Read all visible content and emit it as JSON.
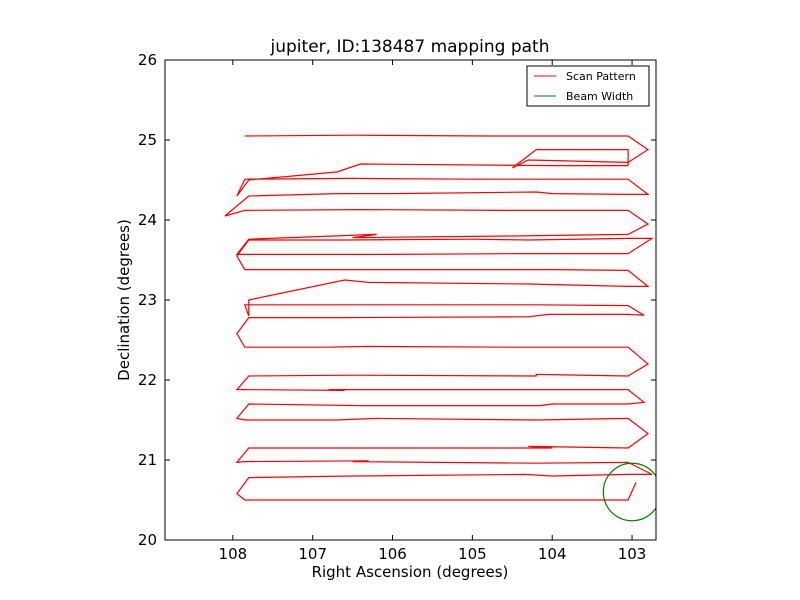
{
  "chart_data": {
    "type": "line",
    "title": "jupiter, ID:138487 mapping path",
    "xlabel": "Right Ascension (degrees)",
    "ylabel": "Declination (degrees)",
    "xlim": [
      108.85,
      102.7
    ],
    "ylim": [
      20,
      26
    ],
    "x_ticks": [
      108,
      107,
      106,
      105,
      104,
      103
    ],
    "y_ticks": [
      20,
      21,
      22,
      23,
      24,
      25,
      26
    ],
    "grid": false,
    "legend_position": "top-right",
    "colors": {
      "scan": "#ff0000",
      "beam": "#008000"
    },
    "series": [
      {
        "name": "Scan Pattern",
        "kind": "line",
        "color": "#ff0000",
        "x": [
          107.85,
          106.5,
          104.8,
          103.05,
          102.8,
          103.05,
          104.3,
          104.5,
          104.2,
          103.05,
          103.05,
          104.0,
          106.4,
          106.7,
          107.8,
          107.95,
          107.85,
          106.5,
          105.0,
          103.05,
          102.8,
          103.05,
          104.0,
          104.2,
          106.0,
          106.7,
          107.8,
          108.1,
          107.85,
          106.4,
          104.5,
          103.05,
          102.8,
          103.05,
          104.5,
          106.5,
          106.2,
          107.8,
          107.95,
          107.85,
          106.8,
          106.0,
          104.4,
          103.05,
          102.75,
          103.05,
          104.3,
          105.0,
          106.6,
          107.8,
          107.95,
          107.85,
          106.5,
          104.0,
          103.05,
          102.8,
          103.05,
          104.3,
          106.3,
          106.6,
          107.8,
          107.8,
          107.85,
          106.8,
          106.4,
          104.2,
          103.05,
          102.85,
          103.05,
          104.05,
          104.3,
          106.6,
          107.8,
          107.95,
          107.85,
          106.8,
          106.3,
          104.5,
          103.05,
          102.8,
          103.05,
          104.2,
          104.2,
          106.5,
          107.8,
          107.95,
          107.85,
          106.6,
          106.8,
          104.3,
          103.05,
          102.85,
          103.05,
          104.0,
          104.15,
          106.4,
          107.8,
          107.95,
          107.85,
          106.7,
          106.2,
          104.2,
          103.05,
          102.8,
          103.05,
          104.3,
          104.0,
          106.4,
          107.8,
          107.95,
          107.85,
          106.3,
          106.5,
          104.2,
          103.05,
          102.75,
          103.05,
          104.0,
          104.35,
          106.5,
          107.8,
          107.95,
          107.85,
          107.0,
          106.5,
          104.0,
          103.05,
          102.95
        ],
        "y": [
          25.05,
          25.06,
          25.05,
          25.05,
          24.88,
          24.72,
          24.75,
          24.65,
          24.88,
          24.88,
          24.68,
          24.68,
          24.7,
          24.6,
          24.5,
          24.3,
          24.51,
          24.52,
          24.51,
          24.51,
          24.32,
          24.32,
          24.33,
          24.35,
          24.33,
          24.33,
          24.3,
          24.05,
          24.12,
          24.13,
          24.12,
          24.12,
          23.95,
          23.82,
          23.8,
          23.78,
          23.82,
          23.76,
          23.57,
          23.57,
          23.57,
          23.57,
          23.58,
          23.58,
          23.77,
          23.77,
          23.75,
          23.76,
          23.75,
          23.75,
          23.55,
          23.38,
          23.38,
          23.38,
          23.37,
          23.17,
          23.17,
          23.2,
          23.22,
          23.25,
          23.0,
          22.8,
          22.94,
          22.94,
          22.94,
          22.94,
          22.93,
          22.81,
          22.82,
          22.82,
          22.79,
          22.78,
          22.78,
          22.58,
          22.41,
          22.41,
          22.42,
          22.41,
          22.41,
          22.2,
          22.05,
          22.07,
          22.05,
          22.06,
          22.05,
          21.88,
          21.88,
          21.87,
          21.88,
          21.88,
          21.88,
          21.72,
          21.7,
          21.7,
          21.68,
          21.68,
          21.7,
          21.52,
          21.5,
          21.5,
          21.52,
          21.5,
          21.52,
          21.33,
          21.15,
          21.17,
          21.15,
          21.15,
          21.15,
          20.97,
          20.98,
          20.99,
          20.98,
          20.96,
          20.97,
          20.82,
          20.82,
          20.8,
          20.82,
          20.8,
          20.78,
          20.58,
          20.5,
          20.5,
          20.5,
          20.5,
          20.5,
          20.72
        ]
      },
      {
        "name": "Beam Width",
        "kind": "circle",
        "color": "#008000",
        "center": [
          103.0,
          20.6
        ],
        "radius_deg": 0.36
      }
    ],
    "legend": [
      {
        "label": "Scan Pattern",
        "color": "#ff0000"
      },
      {
        "label": "Beam Width",
        "color": "#008000"
      }
    ]
  }
}
